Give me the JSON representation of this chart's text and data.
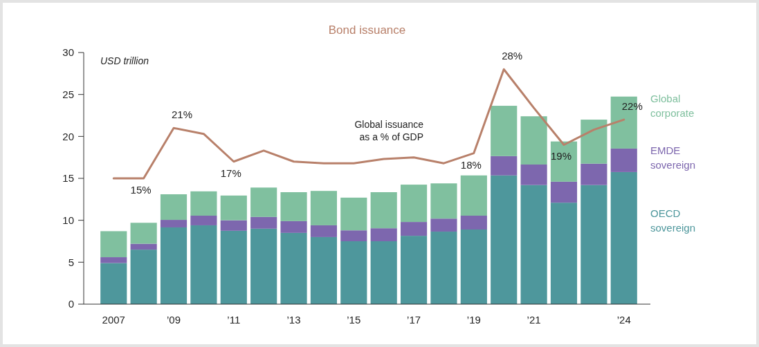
{
  "chart_data": {
    "type": "bar",
    "title": "Bond issuance",
    "ylabel": "USD trillion",
    "stacked": true,
    "categories": [
      "2007",
      null,
      "’09",
      null,
      "’11",
      null,
      "’13",
      null,
      "’15",
      null,
      "’17",
      null,
      "’19",
      null,
      "’21",
      null,
      null,
      "’24"
    ],
    "series": [
      {
        "name": "OECD sovereign",
        "color": "#4e979c",
        "values": [
          4.9,
          6.5,
          9.15,
          9.4,
          8.75,
          9.0,
          8.5,
          8.0,
          7.5,
          7.5,
          8.15,
          8.65,
          8.9,
          15.35,
          14.2,
          12.1,
          14.2,
          15.75
        ]
      },
      {
        "name": "EMDE sovereign",
        "color": "#7d67ae",
        "values": [
          0.7,
          0.7,
          0.9,
          1.15,
          1.25,
          1.4,
          1.4,
          1.4,
          1.3,
          1.55,
          1.65,
          1.55,
          1.65,
          2.3,
          2.45,
          2.5,
          2.55,
          2.8
        ]
      },
      {
        "name": "Global corporate",
        "color": "#80c09f",
        "values": [
          3.1,
          2.5,
          3.05,
          2.9,
          2.95,
          3.5,
          3.45,
          4.1,
          3.9,
          4.3,
          4.45,
          4.2,
          4.8,
          6.0,
          5.75,
          4.8,
          5.25,
          6.2
        ]
      },
      {
        "name": "Global issuance as a % of GDP",
        "type": "line",
        "color": "#b8806a",
        "values": [
          15,
          15,
          21,
          20.3,
          17,
          18.3,
          17.0,
          16.8,
          16.8,
          17.3,
          17.5,
          16.8,
          18,
          28,
          23.4,
          19,
          20.8,
          22
        ],
        "value_labels": [
          null,
          "15%",
          "21%",
          null,
          "17%",
          null,
          null,
          null,
          null,
          null,
          null,
          null,
          "18%",
          "28%",
          null,
          "19%",
          null,
          "22%"
        ]
      }
    ],
    "ylim": [
      0,
      30
    ],
    "yticks": [
      0,
      5,
      10,
      15,
      20,
      25,
      30
    ],
    "legend": "right",
    "grid": false
  }
}
